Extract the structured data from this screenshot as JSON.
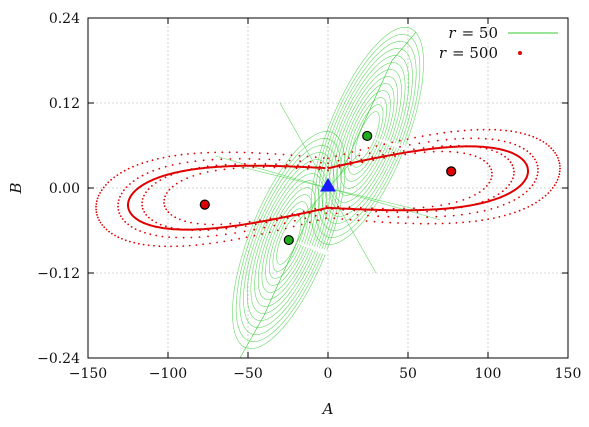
{
  "chart_data": {
    "type": "line",
    "xlabel": "A",
    "ylabel": "B",
    "xlim": [
      -150,
      150
    ],
    "ylim": [
      -0.24,
      0.24
    ],
    "xticks": [
      -150,
      -100,
      -50,
      0,
      50,
      100,
      150
    ],
    "xtick_labels": [
      "−150",
      "−100",
      "−50",
      "0",
      "50",
      "100",
      "150"
    ],
    "yticks": [
      -0.24,
      -0.12,
      0.0,
      0.12,
      0.24
    ],
    "ytick_labels": [
      "−0.24",
      "−0.12",
      "0.00",
      "0.12",
      "0.24"
    ],
    "grid": true,
    "legend_position": "top-right",
    "series": [
      {
        "name": "r = 50",
        "label_var": "r",
        "label_value": "= 50",
        "style": "thin line",
        "color": "#33cc33",
        "description_of_shape": "two-lobed attractor spiralling around the green fixed points, elongated along the diagonal"
      },
      {
        "name": "r = 500",
        "label_var": "r",
        "label_value": "= 500",
        "style": "dots",
        "color": "#e00000",
        "description_of_shape": "figure-eight limit cycle with outer dotted transient loops around the red fixed points"
      }
    ],
    "fixed_points": [
      {
        "x": -77,
        "y": -0.0235,
        "color": "#e00000",
        "marker": "circle"
      },
      {
        "x": 77,
        "y": 0.0235,
        "color": "#e00000",
        "marker": "circle"
      },
      {
        "x": -24.5,
        "y": -0.0735,
        "color": "#1faa1f",
        "marker": "circle"
      },
      {
        "x": 24.5,
        "y": 0.0735,
        "color": "#1faa1f",
        "marker": "circle"
      },
      {
        "x": 0,
        "y": 0.003,
        "color": "#1a1aff",
        "marker": "triangle"
      }
    ]
  }
}
